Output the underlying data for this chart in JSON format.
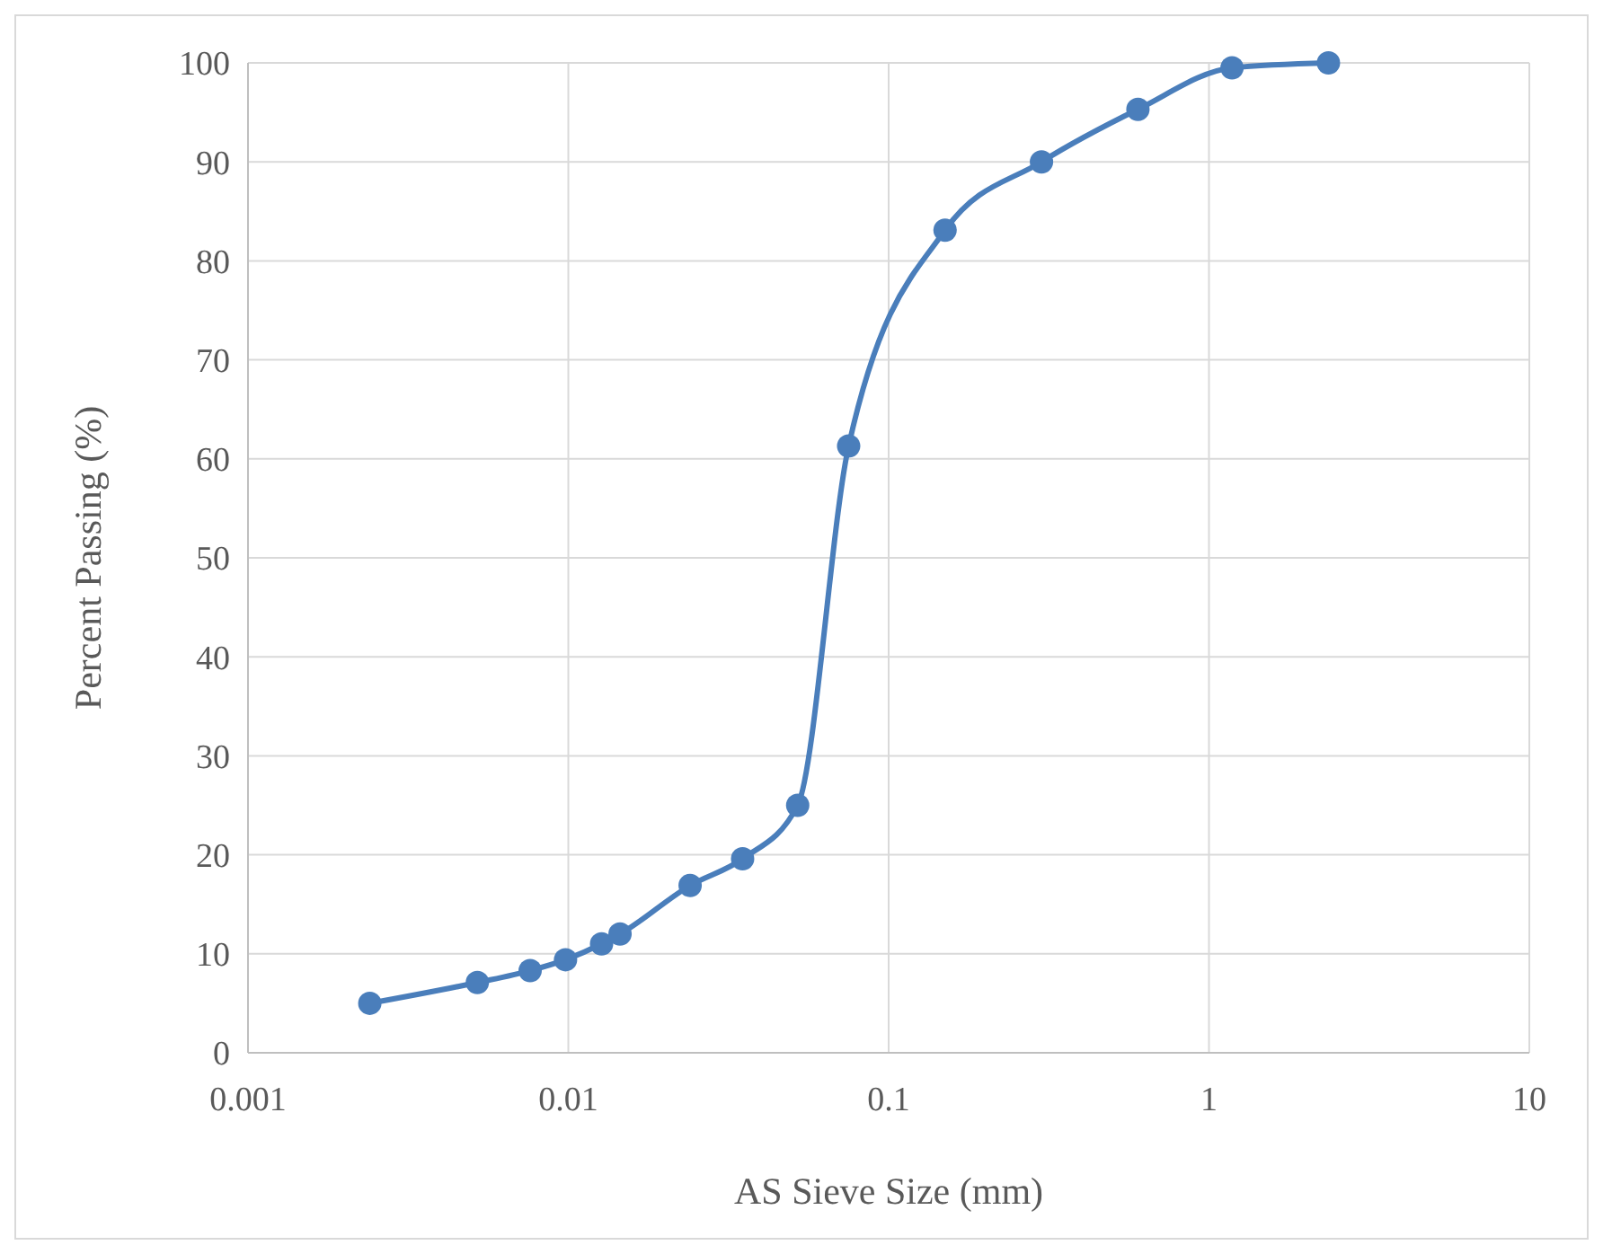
{
  "chart_data": {
    "type": "line",
    "xlabel": "AS Sieve Size (mm)",
    "ylabel": "Percent Passing (%)",
    "log": "x",
    "grid": true,
    "marker": "circle",
    "line_style": "solid",
    "xlim": [
      0.001,
      10
    ],
    "xticks": [
      0.001,
      0.01,
      0.1,
      1,
      10
    ],
    "ylim": [
      0,
      100
    ],
    "yticks": [
      0,
      10,
      20,
      30,
      40,
      50,
      60,
      70,
      80,
      90,
      100
    ],
    "series": [
      {
        "color": "#4a7ebb",
        "x": [
          0.0024,
          0.0052,
          0.0076,
          0.0098,
          0.0127,
          0.0145,
          0.024,
          0.035,
          0.052,
          0.075,
          0.15,
          0.3,
          0.6,
          1.18,
          2.36
        ],
        "values": [
          5.0,
          7.1,
          8.3,
          9.4,
          11.0,
          12.0,
          16.9,
          19.6,
          25.0,
          61.3,
          83.1,
          90.0,
          95.3,
          99.5,
          100
        ]
      }
    ]
  }
}
